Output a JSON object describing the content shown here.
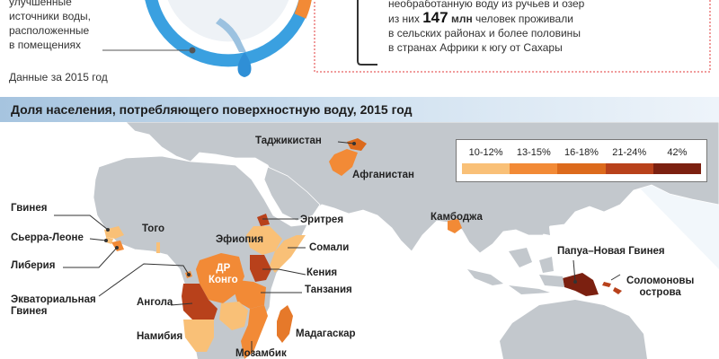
{
  "top": {
    "left_lines": [
      "улучшенные",
      "источники воды,",
      "расположенные",
      "в помещениях"
    ],
    "source": "Данные за 2015 год",
    "fact": {
      "line1": "необработанную воду из ручьев и озер",
      "line2_pre": "из них",
      "number": "147",
      "unit": "млн",
      "line2_post": "человек проживали",
      "line3": "в сельских районах и более половины",
      "line4": "в странах Африки к югу от Сахары"
    }
  },
  "banner": {
    "title": "Доля населения, потребляющего поверхностную воду, 2015 год"
  },
  "legend": {
    "labels": [
      "10-12%",
      "13-15%",
      "16-18%",
      "21-24%",
      "42%"
    ],
    "colors": [
      "#f9c077",
      "#f28a36",
      "#dc6a1c",
      "#b8411b",
      "#7b2010"
    ]
  },
  "countries": {
    "tajikistan": "Таджикистан",
    "afghanistan": "Афганистан",
    "eritrea": "Эритрея",
    "ethiopia": "Эфиопия",
    "somalia": "Сомали",
    "kenya": "Кения",
    "tanzania": "Танзания",
    "madagascar": "Мадагаскар",
    "mozambique": "Мозамбик",
    "namibia": "Намибия",
    "angola": "Ангола",
    "drc_line1": "ДР",
    "drc_line2": "Конго",
    "togo": "Того",
    "guinea": "Гвинея",
    "sierra_leone": "Сьерра-Леоне",
    "liberia": "Либерия",
    "eq_guinea_line1": "Экваториальная",
    "eq_guinea_line2": "Гвинея",
    "cambodia": "Камбоджа",
    "png": "Папуа–Новая Гвинея",
    "solomon_line1": "Соломоновы",
    "solomon_line2": "острова"
  }
}
